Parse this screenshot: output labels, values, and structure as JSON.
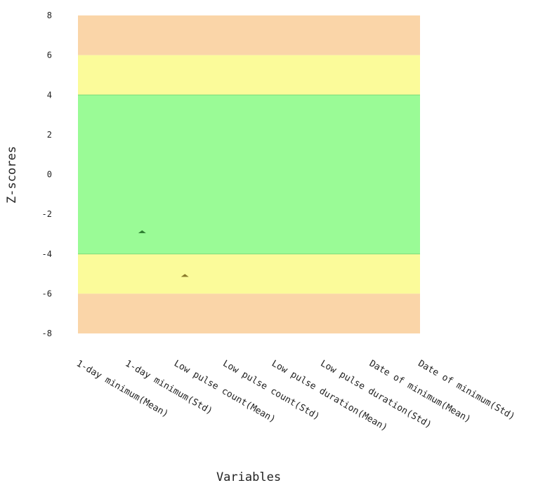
{
  "chart_data": {
    "type": "scatter",
    "xlabel": "Variables",
    "ylabel": "Z-scores",
    "ylim": [
      -8,
      8
    ],
    "yticks": [
      8,
      6,
      4,
      2,
      0,
      -2,
      -4,
      -6,
      -8
    ],
    "categories": [
      "1-day minimum(Mean)",
      "1-day minimum(Std)",
      "Low pulse count(Mean)",
      "Low pulse count(Std)",
      "Low pulse duration(Mean)",
      "Low pulse duration(Std)",
      "Date of minimum(Mean)",
      "Date of minimum(Std)"
    ],
    "bands": [
      {
        "from": 6,
        "to": 8,
        "color": "#fad5a8"
      },
      {
        "from": 4,
        "to": 6,
        "color": "#fbfb9a"
      },
      {
        "from": -4,
        "to": 4,
        "color": "#9afb96"
      },
      {
        "from": -6,
        "to": -4,
        "color": "#fbfb9a"
      },
      {
        "from": -8,
        "to": -6,
        "color": "#fad5a8"
      }
    ],
    "points": [
      {
        "category": "1-day minimum(Std)",
        "category_index": 1.5,
        "value": -2.9,
        "color": "#2e7d32"
      },
      {
        "category": "Low pulse count(Mean)",
        "category_index": 2.5,
        "value": -5.1,
        "color": "#8a7a2a"
      }
    ],
    "grid": false,
    "legend": "none"
  }
}
